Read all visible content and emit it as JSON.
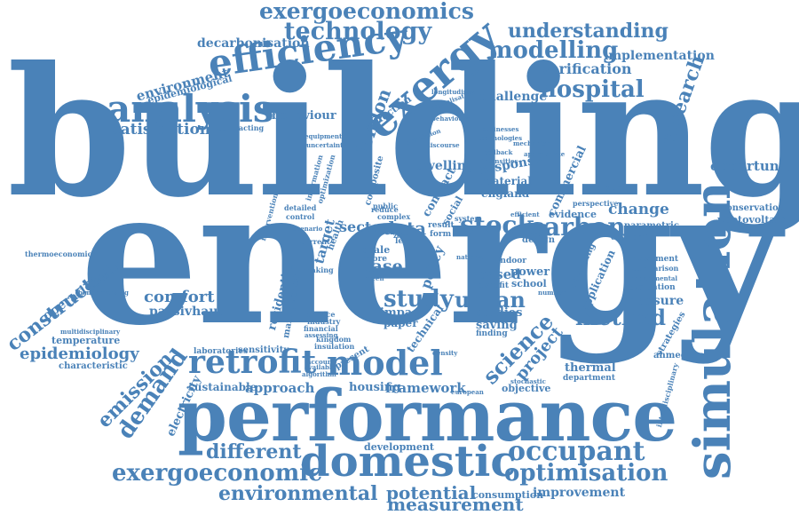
{
  "colors": {
    "word": "#4a82b8",
    "background": "#ffffff"
  },
  "words": {
    "building": "building",
    "energy": "energy",
    "performance": "performance",
    "simulation": "simulation",
    "domestic": "domestic",
    "exergy": "exergy",
    "efficiency": "efficiency",
    "analysis": "analysis",
    "retrofit": "retrofit",
    "model": "model",
    "hospital": "hospital",
    "technology": "technology",
    "exergoeconomics": "exergoeconomics",
    "modelling": "modelling",
    "understanding": "understanding",
    "implementation": "implementation",
    "verification": "verification",
    "decarbonisation": "decarbonisation",
    "environment": "environment",
    "epidemiological": "epidemiological",
    "challenge": "challenge",
    "research": "research",
    "behaviour": "behaviour",
    "satisfaction": "satisfaction",
    "opportunities": "opportunities",
    "conservation": "conservation",
    "photovoltaic": "photovoltaic",
    "parametric": "parametric",
    "change": "change",
    "carbon": "carbon",
    "stock": "stock",
    "data": "data",
    "sector": "sector",
    "evidence": "evidence",
    "economic": "economic",
    "study": "study",
    "urban": "urban",
    "method": "method",
    "measure": "measure",
    "science": "science",
    "project": "project",
    "studies": "studies",
    "saving": "saving",
    "thermal": "thermal",
    "department": "department",
    "strategies": "strategies",
    "ahmedabad": "ahmedabad",
    "construction": "construction",
    "operational": "operational",
    "comfort": "comfort",
    "passivhaus": "passivhaus",
    "temperature": "temperature",
    "epidemiology": "epidemiology",
    "characteristic": "characteristic",
    "emission": "emission",
    "demand": "demand",
    "electricity": "electricity",
    "sustainable": "sustainable",
    "approach": "approach",
    "housing": "housing",
    "framework": "framework",
    "objective": "objective",
    "different": "different",
    "development": "development",
    "occupant": "occupant",
    "optimisation": "optimisation",
    "exergoeconomic": "exergoeconomic",
    "environmental": "environmental",
    "potential": "potential",
    "measurement": "measurement",
    "consumption": "consumption",
    "improvement": "improvement",
    "case": "case",
    "scale": "scale",
    "more": "more",
    "policy": "policy",
    "impact": "impact",
    "paper": "paper",
    "management": "management",
    "residential": "residential",
    "target": "target",
    "london": "london",
    "reduction": "reduction",
    "contract": "contract",
    "school": "school",
    "based": "based",
    "power": "power",
    "benefit": "benefit",
    "sensitivity": "sensitivity",
    "laboratories": "laboratories",
    "financial": "financial",
    "kingdom": "kingdom",
    "insulation": "insulation",
    "present": "present",
    "technical": "technical",
    "investment": "investment",
    "comparison": "comparison",
    "departmental": "departmental",
    "evaluation": "evaluation",
    "interdisciplinary": "interdisciplinary",
    "thermoeconomics": "thermoeconomics",
    "multidisciplinary": "multidisciplinary",
    "commercial": "commercial",
    "material": "material",
    "response": "response",
    "england": "england",
    "dwelling": "dwelling",
    "health": "health",
    "reduce": "reduce",
    "public": "public",
    "complex": "complex",
    "current": "current",
    "level": "level",
    "result": "result",
    "form": "form",
    "detailed": "detailed",
    "control": "control",
    "social": "social",
    "composite": "composite",
    "information": "information",
    "optimization": "optimization",
    "application": "application",
    "operating": "operating",
    "design": "design",
    "perspective": "perspective",
    "finding": "finding",
    "service": "service",
    "industry": "industry",
    "density": "density",
    "european": "european",
    "contracting": "contracting",
    "scenario": "scenario",
    "intervention": "intervention",
    "digitalisation": "digitalisation",
    "intensities": "intensities",
    "longitudinal": "longitudinal",
    "behavioural": "behavioural",
    "benchmarking": "benchmarking",
    "mechanism": "mechanism",
    "appropriate": "appropriate",
    "feedback": "feedback",
    "businesses": "businesses",
    "technologies": "technologies",
    "population": "population",
    "discourse": "discourse",
    "number": "number",
    "account": "account",
    "available": "available",
    "algorithm": "algorithm",
    "making": "making",
    "green": "green",
    "system": "system",
    "efficient": "efficient",
    "equipment": "equipment",
    "uncertainty": "uncertainty",
    "assessing": "assessing",
    "implication": "implication",
    "stochastic": "stochastic",
    "national": "national",
    "indoor": "indoor",
    "zero": "zero"
  }
}
